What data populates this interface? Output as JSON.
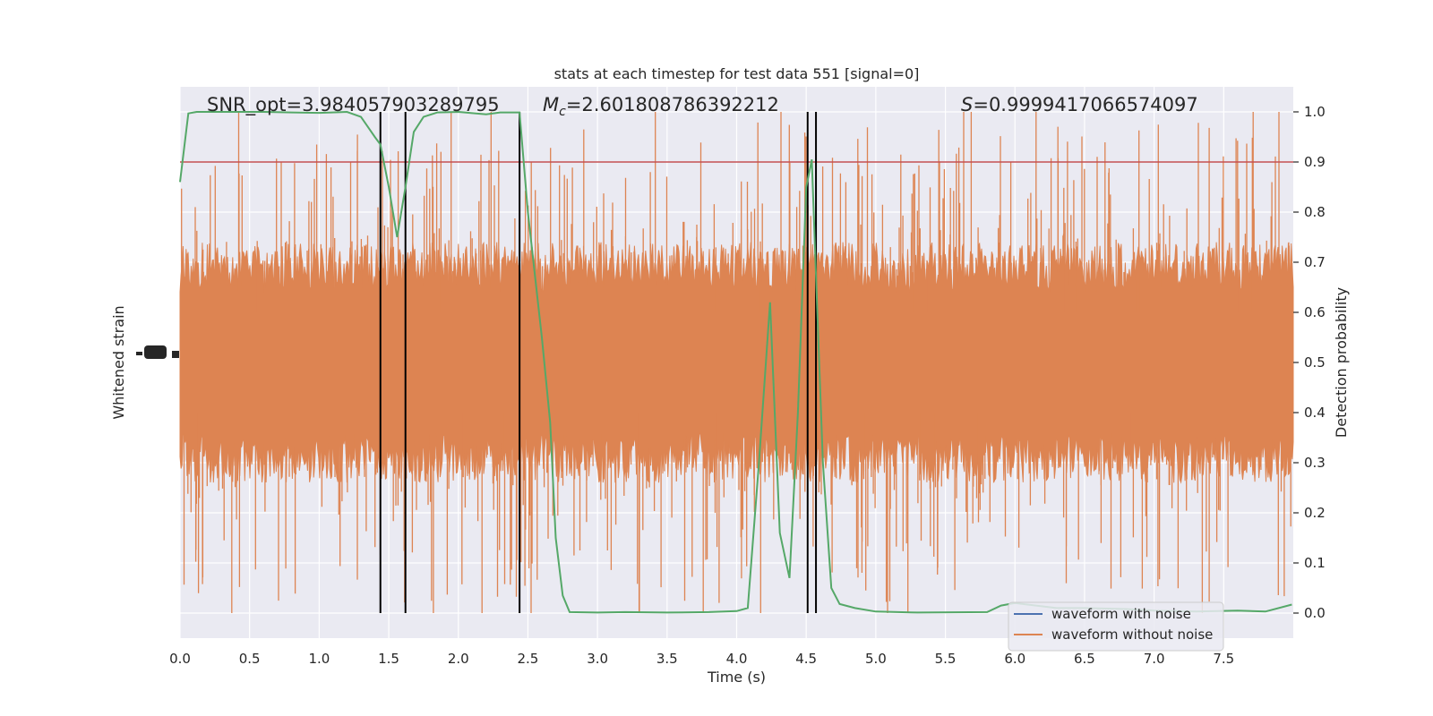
{
  "chart_data": {
    "type": "line",
    "title": "stats at each timestep for test data 551 [signal=0]",
    "xlabel": "Time (s)",
    "ylabel_left": "Whitened strain",
    "ylabel_right": "Detection probability",
    "xlim": [
      0,
      8.0
    ],
    "xticks": [
      0.0,
      0.5,
      1.0,
      1.5,
      2.0,
      2.5,
      3.0,
      3.5,
      4.0,
      4.5,
      5.0,
      5.5,
      6.0,
      6.5,
      7.0,
      7.5
    ],
    "xtick_labels": [
      "0.0",
      "0.5",
      "1.0",
      "1.5",
      "2.0",
      "2.5",
      "3.0",
      "3.5",
      "4.0",
      "4.5",
      "5.0",
      "5.5",
      "6.0",
      "6.5",
      "7.0",
      "7.5"
    ],
    "ylim_right": [
      -0.05,
      1.05
    ],
    "yticks_right": [
      0.0,
      0.1,
      0.2,
      0.3,
      0.4,
      0.5,
      0.6,
      0.7,
      0.8,
      0.9,
      1.0
    ],
    "ytick_labels_right": [
      "0.0",
      "0.1",
      "0.2",
      "0.3",
      "0.4",
      "0.5",
      "0.6",
      "0.7",
      "0.8",
      "0.9",
      "1.0"
    ],
    "annotations": {
      "snr": "SNR_opt=3.984057903289795",
      "mc": "=2.601808786392212",
      "mc_symbol": "M",
      "mc_subscript": "c",
      "s": "=0.9999417066574097",
      "s_symbol": "S"
    },
    "threshold": 0.9,
    "vertical_lines": [
      1.44,
      1.62,
      2.44,
      4.51,
      4.57
    ],
    "grid": true,
    "legend_position": "lower-right",
    "series": [
      {
        "name": "waveform with noise",
        "color": "#4c72b0",
        "values": []
      },
      {
        "name": "waveform without noise",
        "color": "#dd8452",
        "style": "dense noise band, amplitude envelope ~0.33–0.67 detection-axis units with spikes to ~0.0–1.0"
      },
      {
        "name": "detection probability",
        "color": "#55a868",
        "x": [
          0.0,
          0.06,
          0.12,
          0.2,
          0.4,
          0.6,
          0.8,
          1.0,
          1.2,
          1.3,
          1.35,
          1.4,
          1.44,
          1.5,
          1.56,
          1.62,
          1.68,
          1.75,
          1.85,
          2.0,
          2.2,
          2.3,
          2.44,
          2.5,
          2.6,
          2.66,
          2.7,
          2.75,
          2.8,
          3.0,
          3.2,
          3.5,
          3.8,
          4.0,
          4.08,
          4.16,
          4.24,
          4.31,
          4.38,
          4.44,
          4.5,
          4.54,
          4.58,
          4.62,
          4.68,
          4.74,
          4.85,
          5.0,
          5.3,
          5.8,
          5.9,
          6.0,
          6.3,
          6.5,
          6.8,
          7.0,
          7.3,
          7.6,
          7.8,
          7.99
        ],
        "values": [
          0.86,
          0.997,
          1.0,
          1.0,
          1.0,
          1.0,
          0.999,
          0.998,
          1.0,
          0.99,
          0.97,
          0.95,
          0.935,
          0.85,
          0.75,
          0.85,
          0.96,
          0.99,
          0.999,
          1.0,
          0.995,
          0.999,
          0.999,
          0.8,
          0.55,
          0.38,
          0.15,
          0.035,
          0.002,
          0.001,
          0.002,
          0.001,
          0.002,
          0.004,
          0.01,
          0.3,
          0.62,
          0.16,
          0.07,
          0.4,
          0.85,
          0.905,
          0.6,
          0.3,
          0.05,
          0.018,
          0.01,
          0.003,
          0.001,
          0.002,
          0.015,
          0.02,
          0.01,
          0.01,
          0.008,
          0.005,
          0.003,
          0.005,
          0.003,
          0.017
        ]
      }
    ]
  },
  "colors": {
    "background": "#eaeaf2",
    "grid": "#ffffff",
    "threshold": "#c44e52",
    "vline": "#000000"
  }
}
